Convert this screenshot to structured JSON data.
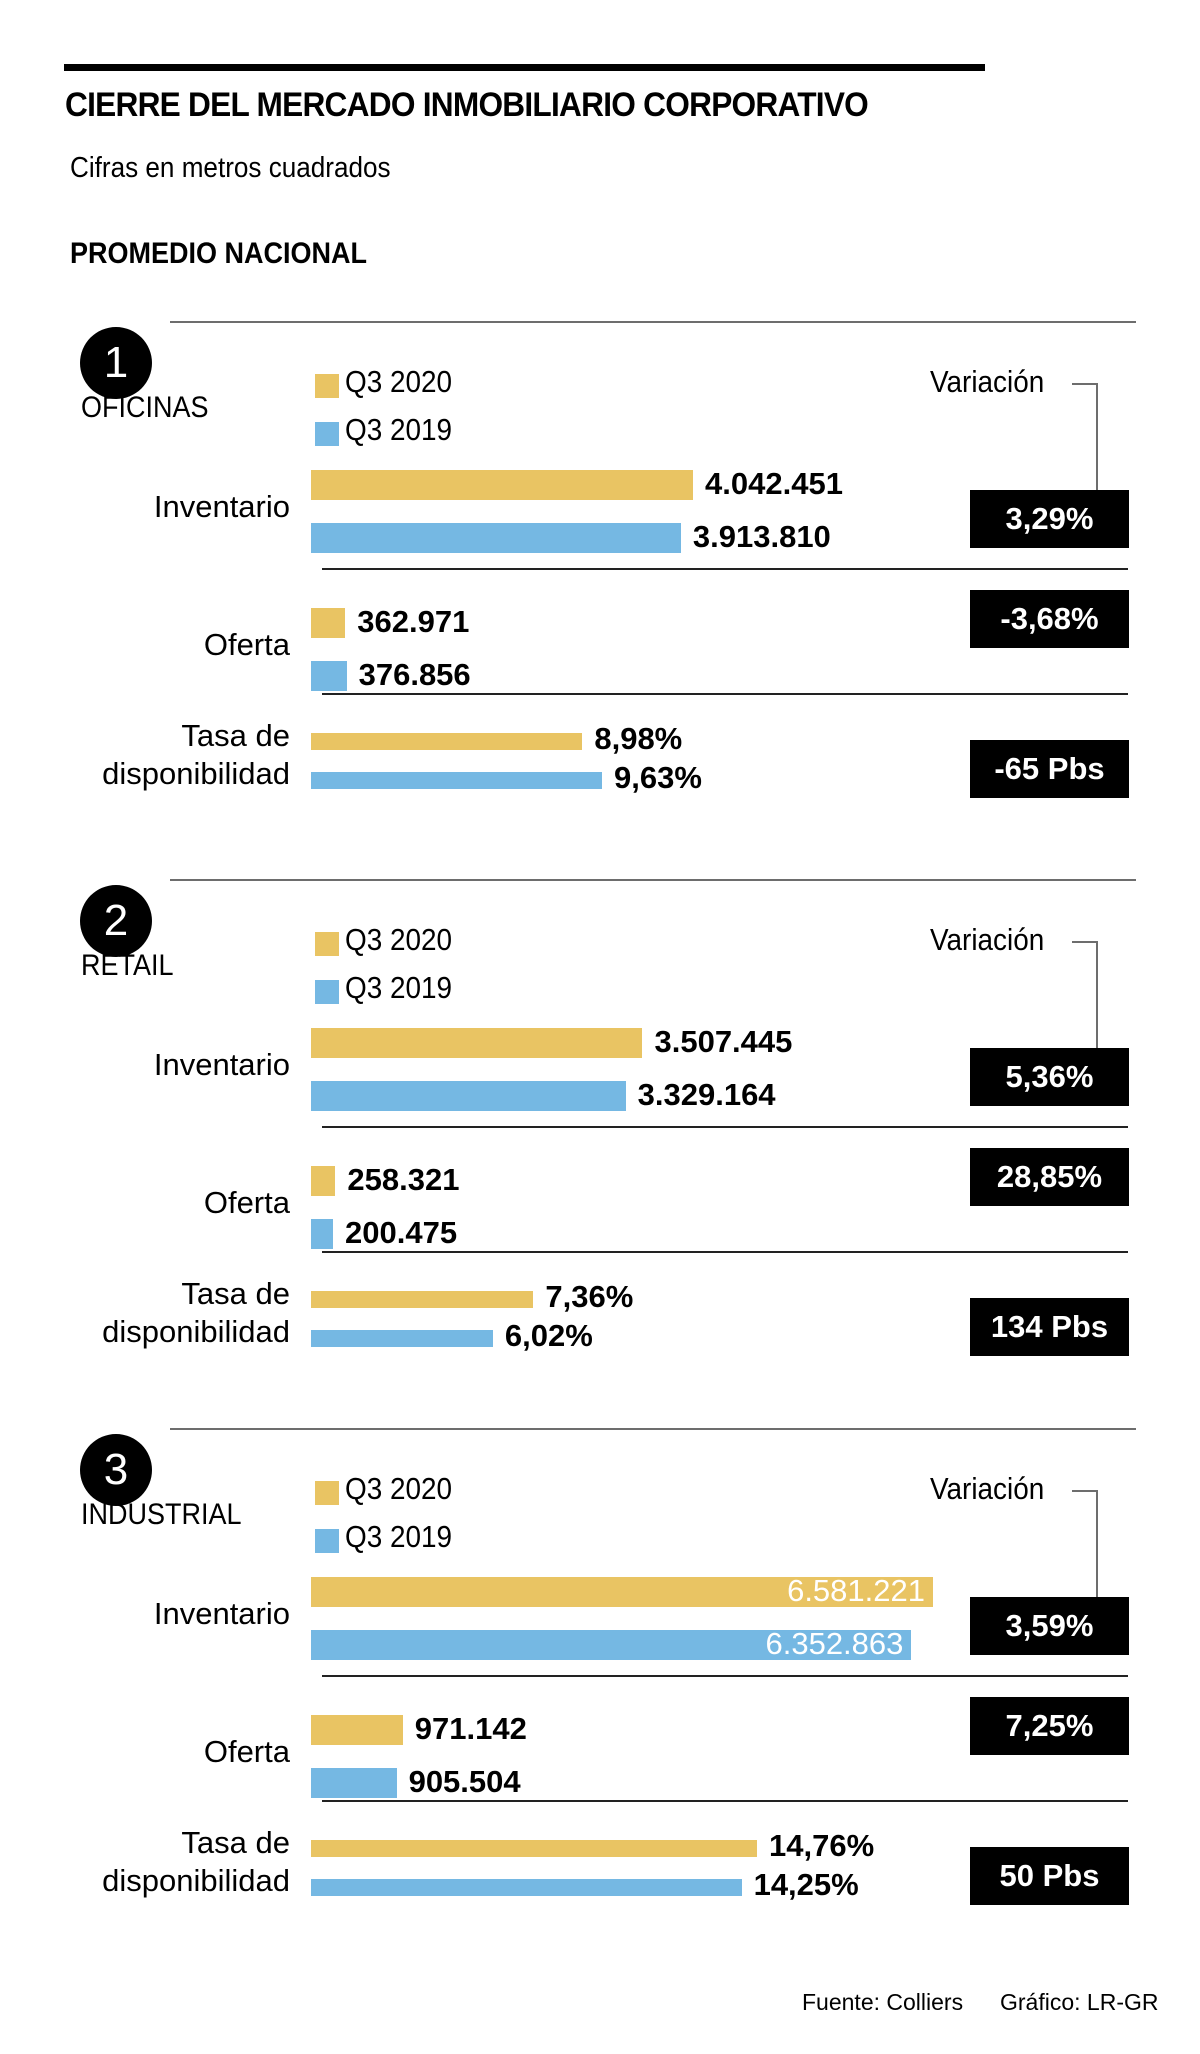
{
  "header": {
    "title": "CIERRE DEL MERCADO INMOBILIARIO CORPORATIVO",
    "subtitle": "Cifras en metros cuadrados",
    "scope": "PROMEDIO NACIONAL"
  },
  "legend": {
    "q3_2020": "Q3 2020",
    "q3_2019": "Q3 2019",
    "variation_label": "Variación"
  },
  "colors": {
    "q3_2020": "#e9c463",
    "q3_2019": "#75b8e3",
    "badge": "#000000"
  },
  "footer": {
    "source": "Fuente: Colliers",
    "credit": "Gráfico: LR-GR"
  },
  "chart_data": {
    "type": "bar",
    "title": "CIERRE DEL MERCADO INMOBILIARIO CORPORATIVO",
    "subtitle": "Cifras en metros cuadrados",
    "series_names": [
      "Q3 2020",
      "Q3 2019"
    ],
    "sections": [
      {
        "number": "1",
        "name": "OFICINAS",
        "rows": [
          {
            "label": "Inventario",
            "q3_2020": 4042451,
            "q3_2019": 3913810,
            "q3_2020_text": "4.042.451",
            "q3_2019_text": "3.913.810",
            "variation": "3,29%",
            "scale_max": 6581221
          },
          {
            "label": "Oferta",
            "q3_2020": 362971,
            "q3_2019": 376856,
            "q3_2020_text": "362.971",
            "q3_2019_text": "376.856",
            "variation": "-3,68%",
            "scale_max": 6581221
          },
          {
            "label": "Tasa de disponibilidad",
            "q3_2020": 8.98,
            "q3_2019": 9.63,
            "q3_2020_text": "8,98%",
            "q3_2019_text": "9,63%",
            "variation": "-65 Pbs",
            "scale_max": 14.76
          }
        ]
      },
      {
        "number": "2",
        "name": "RETAIL",
        "rows": [
          {
            "label": "Inventario",
            "q3_2020": 3507445,
            "q3_2019": 3329164,
            "q3_2020_text": "3.507.445",
            "q3_2019_text": "3.329.164",
            "variation": "5,36%",
            "scale_max": 6581221
          },
          {
            "label": "Oferta",
            "q3_2020": 258321,
            "q3_2019": 200475,
            "q3_2020_text": "258.321",
            "q3_2019_text": "200.475",
            "variation": "28,85%",
            "scale_max": 6581221
          },
          {
            "label": "Tasa de disponibilidad",
            "q3_2020": 7.36,
            "q3_2019": 6.02,
            "q3_2020_text": "7,36%",
            "q3_2019_text": "6,02%",
            "variation": "134 Pbs",
            "scale_max": 14.76
          }
        ]
      },
      {
        "number": "3",
        "name": "INDUSTRIAL",
        "rows": [
          {
            "label": "Inventario",
            "q3_2020": 6581221,
            "q3_2019": 6352863,
            "q3_2020_text": "6.581.221",
            "q3_2019_text": "6.352.863",
            "variation": "3,59%",
            "scale_max": 6581221
          },
          {
            "label": "Oferta",
            "q3_2020": 971142,
            "q3_2019": 905504,
            "q3_2020_text": "971.142",
            "q3_2019_text": "905.504",
            "variation": "7,25%",
            "scale_max": 6581221
          },
          {
            "label": "Tasa de disponibilidad",
            "q3_2020": 14.76,
            "q3_2019": 14.25,
            "q3_2020_text": "14,76%",
            "q3_2019_text": "14,25%",
            "variation": "50 Pbs",
            "scale_max": 14.76
          }
        ]
      }
    ]
  }
}
